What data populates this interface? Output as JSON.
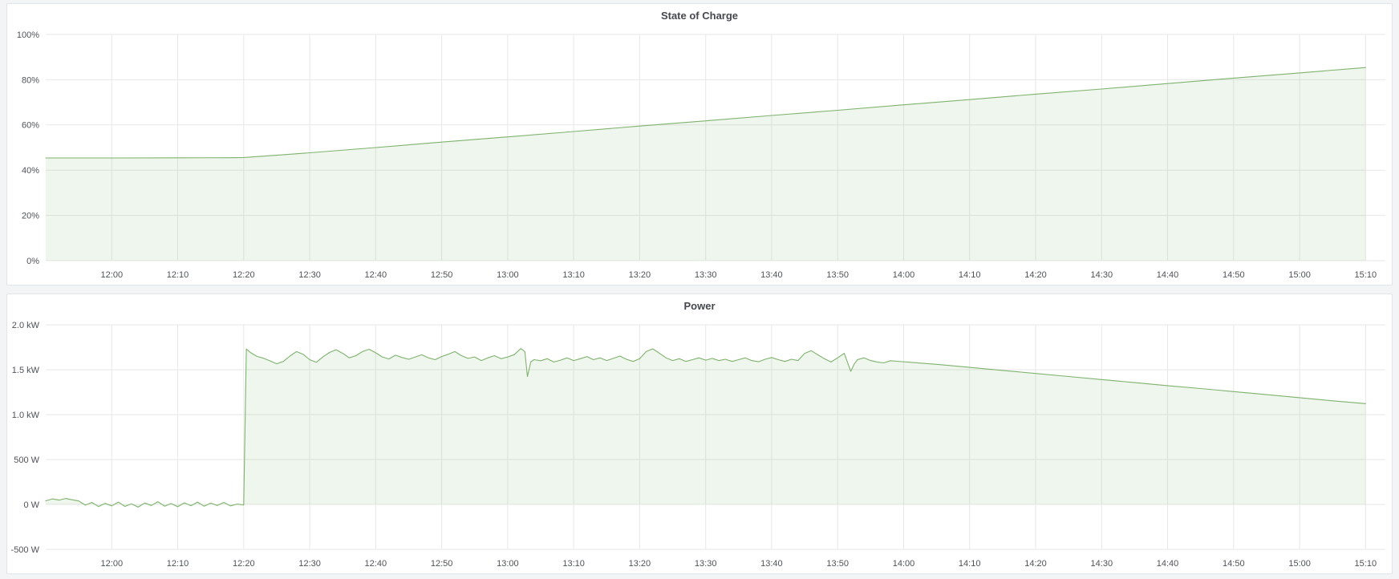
{
  "page": {
    "background": "#f3f4f6",
    "panel_background": "#ffffff",
    "panel_border": "#e1e4e8",
    "accent_green": "#7eb26d"
  },
  "chart_data": [
    {
      "type": "area",
      "title": "State of Charge",
      "unit": "percent",
      "legend": "none",
      "grid": true,
      "xlim": [
        0,
        203
      ],
      "ylim": [
        0,
        100
      ],
      "baseline": 0,
      "line_color": "#7eb26d",
      "fill_opacity": 0.12,
      "x_ticks": [
        {
          "t": 10,
          "label": "12:00"
        },
        {
          "t": 20,
          "label": "12:10"
        },
        {
          "t": 30,
          "label": "12:20"
        },
        {
          "t": 40,
          "label": "12:30"
        },
        {
          "t": 50,
          "label": "12:40"
        },
        {
          "t": 60,
          "label": "12:50"
        },
        {
          "t": 70,
          "label": "13:00"
        },
        {
          "t": 80,
          "label": "13:10"
        },
        {
          "t": 90,
          "label": "13:20"
        },
        {
          "t": 100,
          "label": "13:30"
        },
        {
          "t": 110,
          "label": "13:40"
        },
        {
          "t": 120,
          "label": "13:50"
        },
        {
          "t": 130,
          "label": "14:00"
        },
        {
          "t": 140,
          "label": "14:10"
        },
        {
          "t": 150,
          "label": "14:20"
        },
        {
          "t": 160,
          "label": "14:30"
        },
        {
          "t": 170,
          "label": "14:40"
        },
        {
          "t": 180,
          "label": "14:50"
        },
        {
          "t": 190,
          "label": "15:00"
        },
        {
          "t": 200,
          "label": "15:10"
        }
      ],
      "y_ticks": [
        {
          "v": 0,
          "label": "0%"
        },
        {
          "v": 20,
          "label": "20%"
        },
        {
          "v": 40,
          "label": "40%"
        },
        {
          "v": 60,
          "label": "60%"
        },
        {
          "v": 80,
          "label": "80%"
        },
        {
          "v": 100,
          "label": "100%"
        }
      ],
      "points": [
        [
          0,
          45.4
        ],
        [
          10,
          45.4
        ],
        [
          20,
          45.45
        ],
        [
          28,
          45.5
        ],
        [
          30,
          45.6
        ],
        [
          35,
          46.6
        ],
        [
          40,
          47.7
        ],
        [
          50,
          50.0
        ],
        [
          60,
          52.4
        ],
        [
          70,
          54.7
        ],
        [
          80,
          57.1
        ],
        [
          90,
          59.5
        ],
        [
          100,
          61.8
        ],
        [
          110,
          64.2
        ],
        [
          120,
          66.5
        ],
        [
          130,
          68.9
        ],
        [
          140,
          71.2
        ],
        [
          150,
          73.6
        ],
        [
          160,
          75.9
        ],
        [
          170,
          78.3
        ],
        [
          180,
          80.7
        ],
        [
          190,
          83.0
        ],
        [
          200,
          85.4
        ]
      ]
    },
    {
      "type": "area",
      "title": "Power",
      "unit": "watt",
      "legend": "none",
      "grid": true,
      "xlim": [
        0,
        203
      ],
      "ylim": [
        -500,
        2000
      ],
      "baseline": 0,
      "line_color": "#7eb26d",
      "fill_opacity": 0.12,
      "x_ticks": [
        {
          "t": 10,
          "label": "12:00"
        },
        {
          "t": 20,
          "label": "12:10"
        },
        {
          "t": 30,
          "label": "12:20"
        },
        {
          "t": 40,
          "label": "12:30"
        },
        {
          "t": 50,
          "label": "12:40"
        },
        {
          "t": 60,
          "label": "12:50"
        },
        {
          "t": 70,
          "label": "13:00"
        },
        {
          "t": 80,
          "label": "13:10"
        },
        {
          "t": 90,
          "label": "13:20"
        },
        {
          "t": 100,
          "label": "13:30"
        },
        {
          "t": 110,
          "label": "13:40"
        },
        {
          "t": 120,
          "label": "13:50"
        },
        {
          "t": 130,
          "label": "14:00"
        },
        {
          "t": 140,
          "label": "14:10"
        },
        {
          "t": 150,
          "label": "14:20"
        },
        {
          "t": 160,
          "label": "14:30"
        },
        {
          "t": 170,
          "label": "14:40"
        },
        {
          "t": 180,
          "label": "14:50"
        },
        {
          "t": 190,
          "label": "15:00"
        },
        {
          "t": 200,
          "label": "15:10"
        }
      ],
      "y_ticks": [
        {
          "v": -500,
          "label": "-500 W"
        },
        {
          "v": 0,
          "label": "0 W"
        },
        {
          "v": 500,
          "label": "500 W"
        },
        {
          "v": 1000,
          "label": "1.0 kW"
        },
        {
          "v": 1500,
          "label": "1.5 kW"
        },
        {
          "v": 2000,
          "label": "2.0 kW"
        }
      ],
      "points": [
        [
          0,
          40
        ],
        [
          1,
          62
        ],
        [
          2,
          48
        ],
        [
          3,
          66
        ],
        [
          4,
          52
        ],
        [
          5,
          38
        ],
        [
          6,
          -8
        ],
        [
          7,
          22
        ],
        [
          8,
          -24
        ],
        [
          9,
          12
        ],
        [
          10,
          -16
        ],
        [
          11,
          26
        ],
        [
          12,
          -22
        ],
        [
          13,
          6
        ],
        [
          14,
          -30
        ],
        [
          15,
          16
        ],
        [
          16,
          -12
        ],
        [
          17,
          30
        ],
        [
          18,
          -20
        ],
        [
          19,
          10
        ],
        [
          20,
          -26
        ],
        [
          21,
          18
        ],
        [
          22,
          -14
        ],
        [
          23,
          26
        ],
        [
          24,
          -20
        ],
        [
          25,
          14
        ],
        [
          26,
          -12
        ],
        [
          27,
          22
        ],
        [
          28,
          -16
        ],
        [
          29,
          4
        ],
        [
          30,
          -6
        ],
        [
          30.4,
          1730
        ],
        [
          31,
          1692
        ],
        [
          32,
          1648
        ],
        [
          33,
          1628
        ],
        [
          34,
          1598
        ],
        [
          35,
          1566
        ],
        [
          36,
          1592
        ],
        [
          37,
          1652
        ],
        [
          38,
          1702
        ],
        [
          39,
          1672
        ],
        [
          40,
          1612
        ],
        [
          41,
          1582
        ],
        [
          42,
          1642
        ],
        [
          43,
          1692
        ],
        [
          44,
          1722
        ],
        [
          45,
          1682
        ],
        [
          46,
          1632
        ],
        [
          47,
          1656
        ],
        [
          48,
          1702
        ],
        [
          49,
          1728
        ],
        [
          50,
          1688
        ],
        [
          51,
          1642
        ],
        [
          52,
          1620
        ],
        [
          53,
          1662
        ],
        [
          54,
          1636
        ],
        [
          55,
          1616
        ],
        [
          56,
          1642
        ],
        [
          57,
          1666
        ],
        [
          58,
          1632
        ],
        [
          59,
          1612
        ],
        [
          60,
          1646
        ],
        [
          61,
          1672
        ],
        [
          62,
          1702
        ],
        [
          63,
          1656
        ],
        [
          64,
          1626
        ],
        [
          65,
          1642
        ],
        [
          66,
          1602
        ],
        [
          67,
          1632
        ],
        [
          68,
          1656
        ],
        [
          69,
          1622
        ],
        [
          70,
          1642
        ],
        [
          71,
          1668
        ],
        [
          72,
          1736
        ],
        [
          72.6,
          1700
        ],
        [
          73,
          1424
        ],
        [
          73.5,
          1588
        ],
        [
          74,
          1612
        ],
        [
          75,
          1600
        ],
        [
          76,
          1622
        ],
        [
          77,
          1586
        ],
        [
          78,
          1606
        ],
        [
          79,
          1632
        ],
        [
          80,
          1602
        ],
        [
          81,
          1622
        ],
        [
          82,
          1646
        ],
        [
          83,
          1612
        ],
        [
          84,
          1632
        ],
        [
          85,
          1602
        ],
        [
          86,
          1626
        ],
        [
          87,
          1652
        ],
        [
          88,
          1616
        ],
        [
          89,
          1592
        ],
        [
          90,
          1622
        ],
        [
          91,
          1702
        ],
        [
          92,
          1732
        ],
        [
          93,
          1682
        ],
        [
          94,
          1632
        ],
        [
          95,
          1602
        ],
        [
          96,
          1622
        ],
        [
          97,
          1592
        ],
        [
          98,
          1612
        ],
        [
          99,
          1632
        ],
        [
          100,
          1606
        ],
        [
          101,
          1626
        ],
        [
          102,
          1602
        ],
        [
          103,
          1616
        ],
        [
          104,
          1592
        ],
        [
          105,
          1612
        ],
        [
          106,
          1632
        ],
        [
          107,
          1602
        ],
        [
          108,
          1588
        ],
        [
          109,
          1616
        ],
        [
          110,
          1636
        ],
        [
          111,
          1612
        ],
        [
          112,
          1592
        ],
        [
          113,
          1616
        ],
        [
          114,
          1602
        ],
        [
          115,
          1682
        ],
        [
          116,
          1712
        ],
        [
          117,
          1666
        ],
        [
          118,
          1622
        ],
        [
          119,
          1586
        ],
        [
          120,
          1632
        ],
        [
          121,
          1682
        ],
        [
          122,
          1482
        ],
        [
          122.5,
          1562
        ],
        [
          123,
          1612
        ],
        [
          124,
          1632
        ],
        [
          125,
          1602
        ],
        [
          126,
          1586
        ],
        [
          127,
          1576
        ],
        [
          128,
          1600
        ],
        [
          129,
          1594
        ],
        [
          135,
          1560
        ],
        [
          140,
          1526
        ],
        [
          145,
          1492
        ],
        [
          150,
          1458
        ],
        [
          155,
          1424
        ],
        [
          160,
          1390
        ],
        [
          165,
          1356
        ],
        [
          170,
          1322
        ],
        [
          175,
          1290
        ],
        [
          180,
          1256
        ],
        [
          185,
          1222
        ],
        [
          190,
          1188
        ],
        [
          195,
          1154
        ],
        [
          200,
          1122
        ]
      ]
    }
  ]
}
